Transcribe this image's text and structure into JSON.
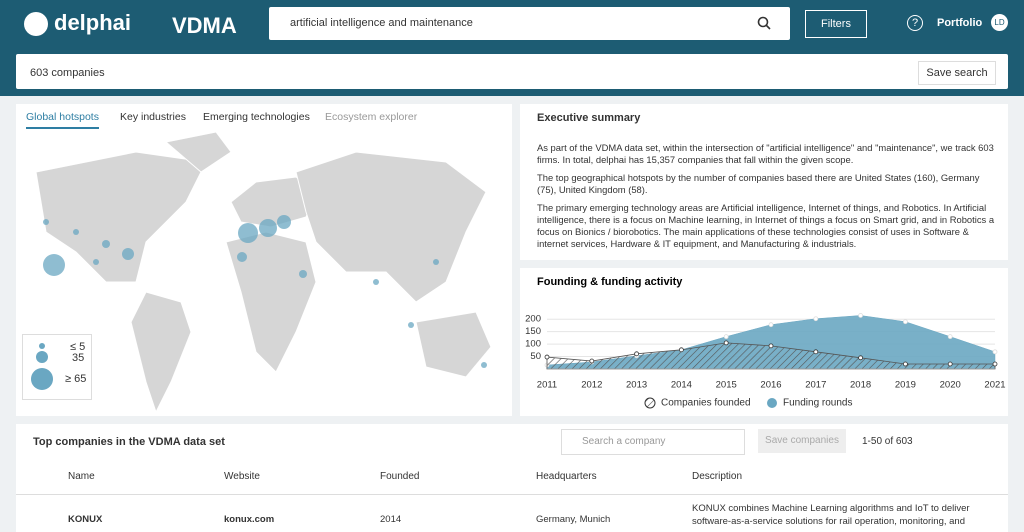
{
  "header": {
    "logo": "delphai",
    "partner": "VDMA",
    "search": "artificial intelligence and maintenance",
    "filters": "Filters",
    "portfolio": "Portfolio",
    "avatar": "LD"
  },
  "searchbar": {
    "count": "603 companies",
    "save": "Save search"
  },
  "map_panel": {
    "tabs": [
      "Global hotspots",
      "Key industries",
      "Emerging technologies",
      "Ecosystem explorer"
    ],
    "legend": [
      "≤ 5",
      "35",
      "≥ 65"
    ]
  },
  "summary": {
    "title": "Executive summary",
    "paragraphs": [
      "As part of the VDMA data set, within the intersection of \"artificial intelligence\" and \"maintenance\", we track 603 firms. In total, delphai has 15,357 companies that fall within the given scope.",
      "The top geographical hotspots by the number of companies based there are United States (160), Germany (75), United Kingdom (58).",
      "The primary emerging technology areas are Artificial intelligence, Internet of things, and Robotics. In Artificial intelligence, there is a focus on Machine learning, in Internet of things a focus on Smart grid, and in Robotics a focus on Bionics / biorobotics. The main applications of these technologies consist of uses in Software & internet services, Hardware & IT equipment, and Manufacturing & industrials."
    ]
  },
  "chart_data": {
    "type": "area",
    "title": "Founding & funding activity",
    "categories": [
      "2011",
      "2012",
      "2013",
      "2014",
      "2015",
      "2016",
      "2017",
      "2018",
      "2019",
      "2020",
      "2021"
    ],
    "series": [
      {
        "name": "Companies founded",
        "color": "#555555",
        "values": [
          48,
          32,
          61,
          77,
          105,
          93,
          69,
          45,
          20,
          20,
          20
        ]
      },
      {
        "name": "Funding rounds",
        "color": "#6aa7c2",
        "values": [
          16,
          28,
          53,
          77,
          130,
          178,
          202,
          215,
          190,
          130,
          69
        ]
      }
    ],
    "ylim": [
      0,
      225
    ],
    "yticks": [
      50,
      100,
      150,
      200
    ],
    "grid": true
  },
  "table": {
    "title": "Top companies in the VDMA data set",
    "search": "Search a company",
    "save": "Save companies",
    "pager": "1-50 of 603",
    "columns": [
      "Name",
      "Website",
      "Founded",
      "Headquarters",
      "Description"
    ],
    "rows": [
      [
        "KONUX",
        "konux.com",
        "2014",
        "Germany, Munich",
        "KONUX combines Machine Learning algorithms and IoT to deliver software-as-a-service solutions for rail operation, monitoring, and"
      ]
    ]
  }
}
